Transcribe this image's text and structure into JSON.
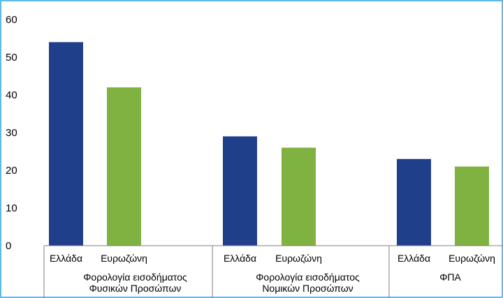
{
  "chart_data": {
    "type": "bar",
    "ylim": [
      0,
      60
    ],
    "yticks": [
      0,
      10,
      20,
      30,
      40,
      50,
      60
    ],
    "grid": false,
    "legend": "none",
    "groups": [
      {
        "label": [
          "Φορολογία εισοδήματος",
          "Φυσικών Προσώπων"
        ],
        "bars": [
          {
            "label": "Ελλάδα",
            "value": 54,
            "color": "#1f3f8a"
          },
          {
            "label": "Ευρωζώνη",
            "value": 42,
            "color": "#7fb241"
          }
        ]
      },
      {
        "label": [
          "Φορολογία εισοδήματος",
          "Νομικών Προσώπων"
        ],
        "bars": [
          {
            "label": "Ελλάδα",
            "value": 29,
            "color": "#1f3f8a"
          },
          {
            "label": "Ευρωζώνη",
            "value": 26,
            "color": "#7fb241"
          }
        ]
      },
      {
        "label": [
          "ΦΠΑ"
        ],
        "bars": [
          {
            "label": "Ελλάδα",
            "value": 23,
            "color": "#1f3f8a"
          },
          {
            "label": "Ευρωζώνη",
            "value": 21,
            "color": "#7fb241"
          }
        ]
      }
    ]
  },
  "colors": {
    "border": "#29a3e0",
    "axis": "#7f7f7f"
  }
}
